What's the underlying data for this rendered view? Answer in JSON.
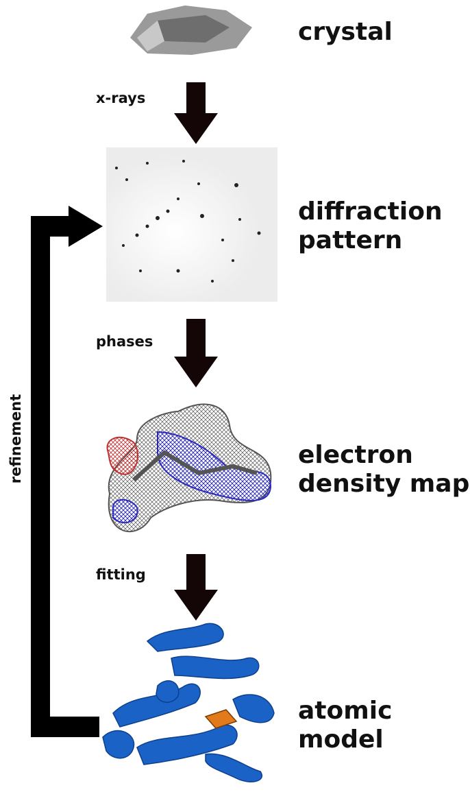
{
  "nodes": [
    {
      "lines": [
        "crystal"
      ]
    },
    {
      "lines": [
        "diffraction",
        "pattern"
      ]
    },
    {
      "lines": [
        "electron",
        "density map"
      ]
    },
    {
      "lines": [
        "atomic",
        "model"
      ]
    }
  ],
  "edges": [
    {
      "label": "x-rays"
    },
    {
      "label": "phases"
    },
    {
      "label": "fitting"
    }
  ],
  "feedback": {
    "label": "refinement"
  }
}
